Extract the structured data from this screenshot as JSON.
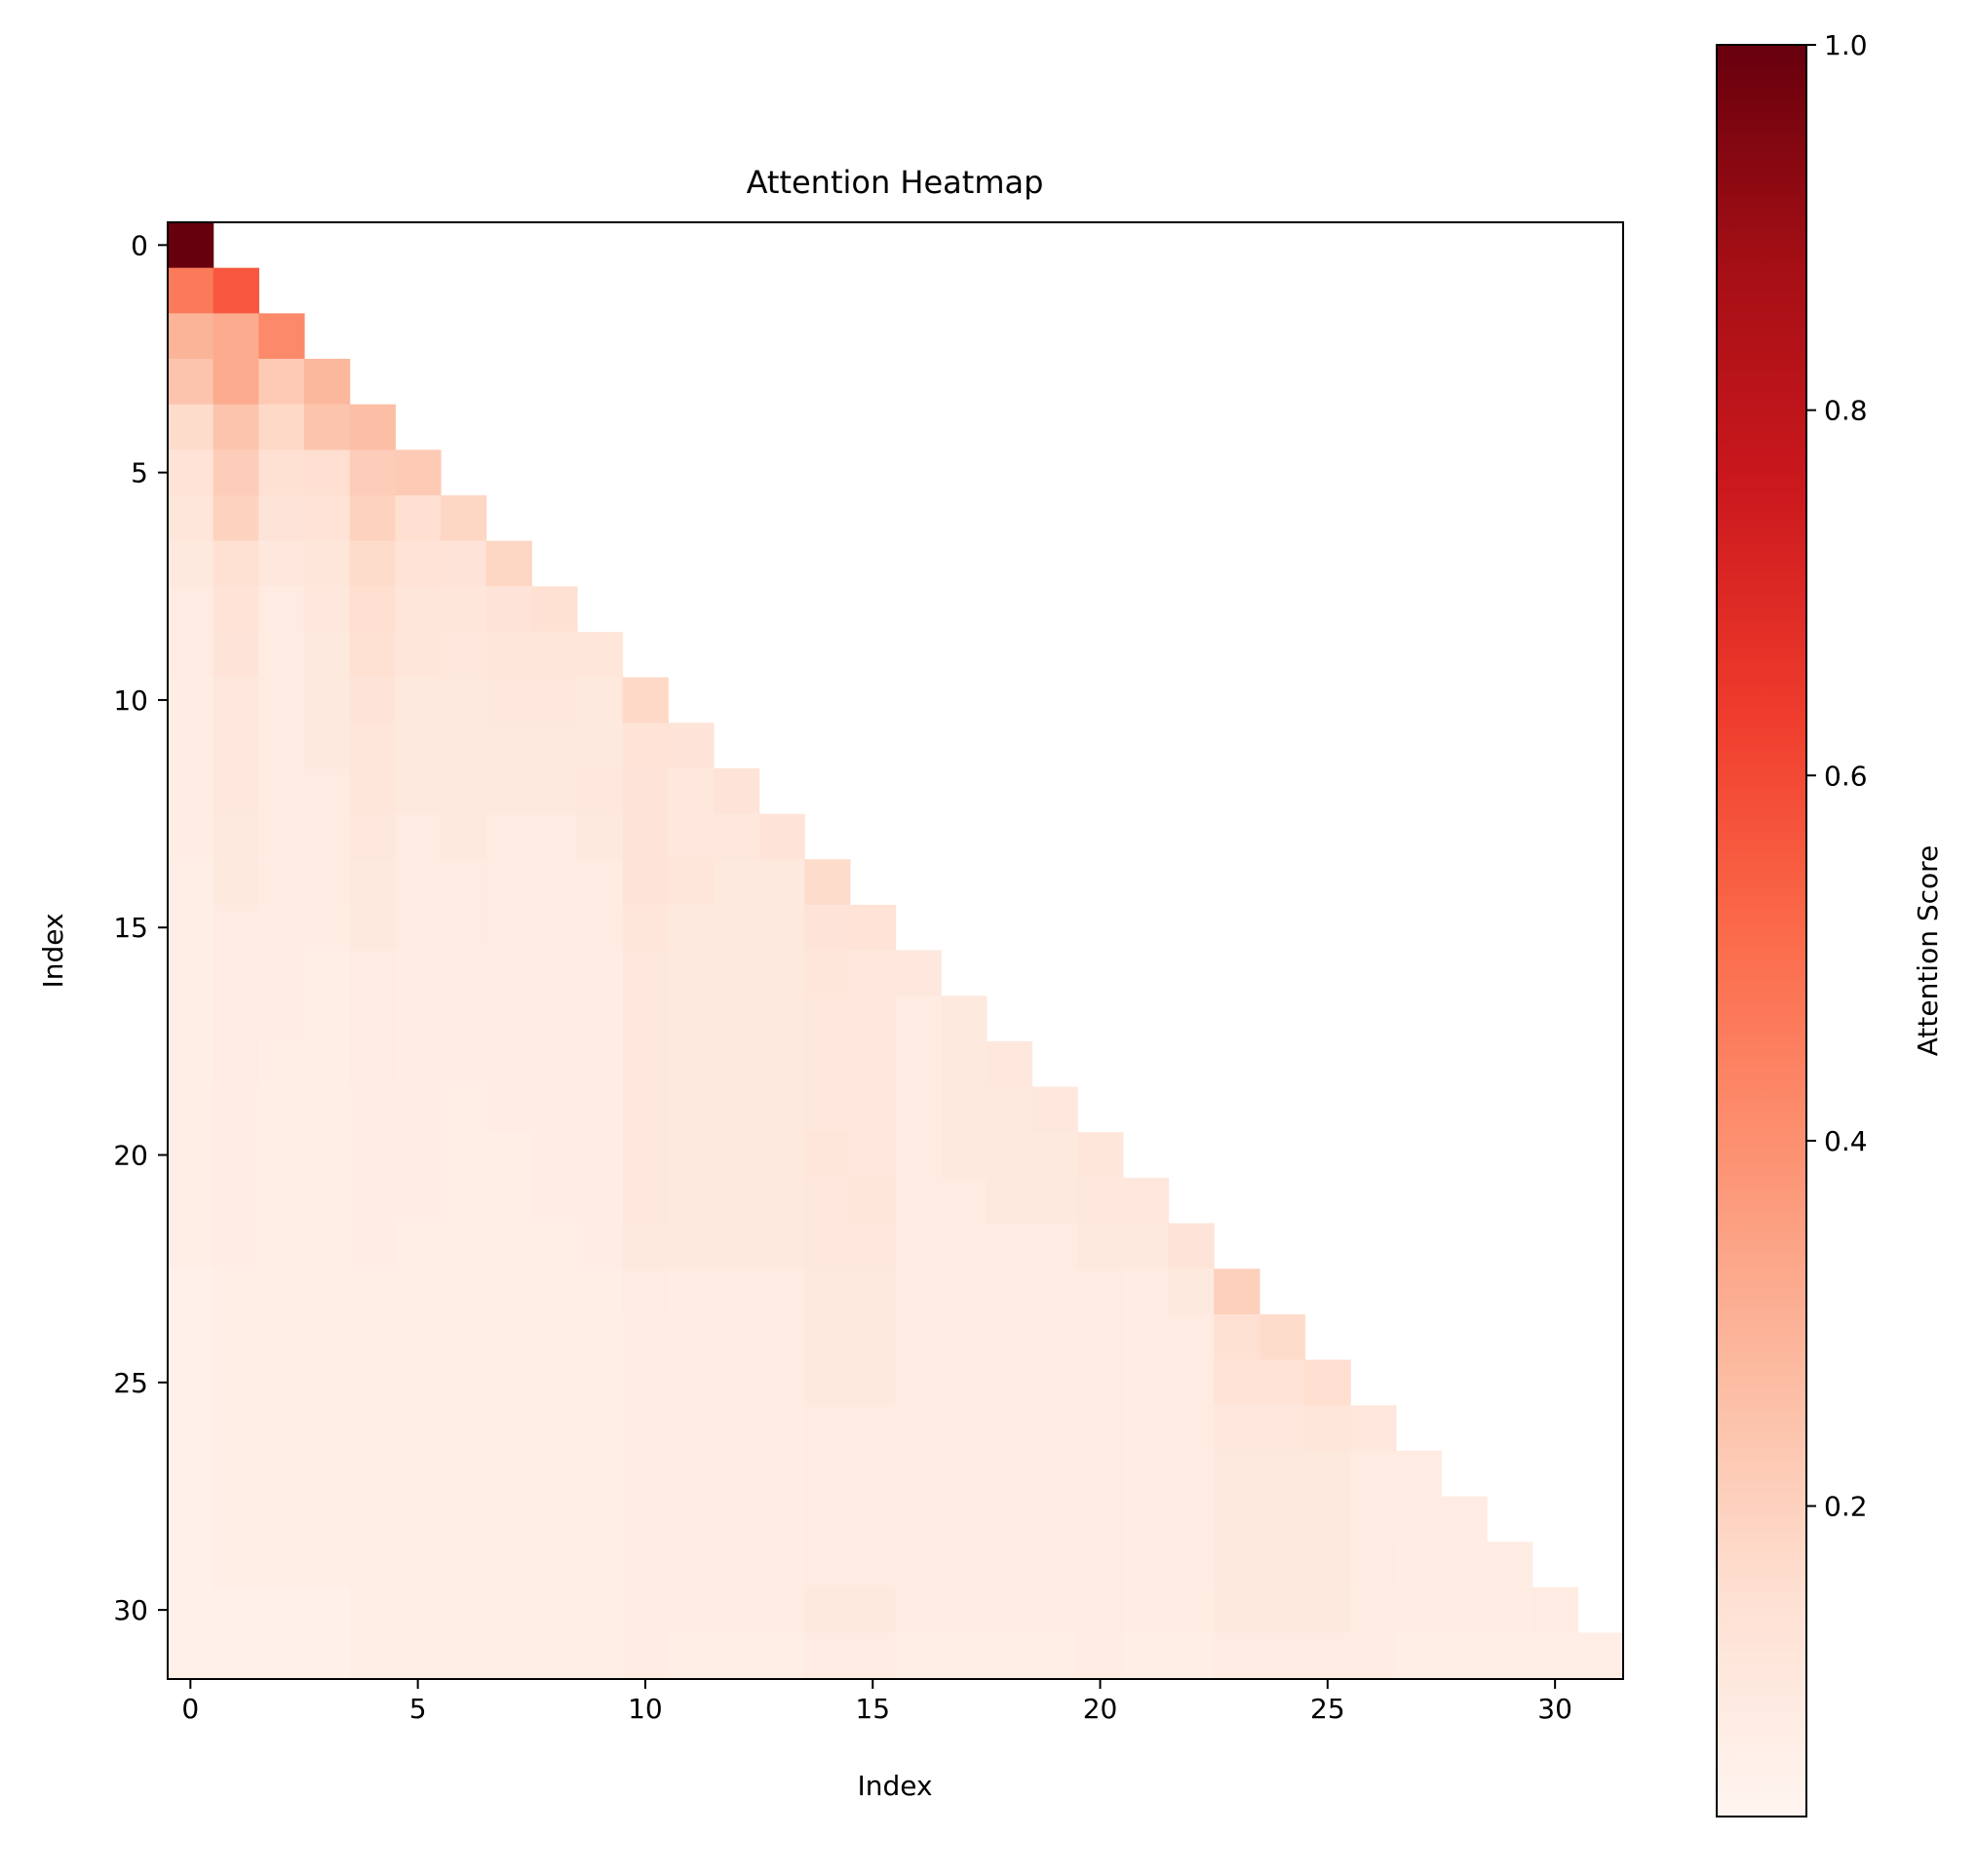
{
  "chart_data": {
    "type": "heatmap",
    "title": "Attention Heatmap",
    "xlabel": "Index",
    "ylabel": "Index",
    "colorbar_label": "Attention Score",
    "colormap": "Reds",
    "colormap_stops": [
      "#fff5f0",
      "#fee0d2",
      "#fcbba1",
      "#fc9272",
      "#fb6a4a",
      "#ef3b2c",
      "#cb181d",
      "#a50f15",
      "#67000d"
    ],
    "vmin": 0.0,
    "vmax": 1.0,
    "colorbar_ticks": [
      {
        "value": 0.2,
        "label": "0.2"
      },
      {
        "value": 0.4,
        "label": "0.4"
      },
      {
        "value": 0.6,
        "label": "0.6"
      },
      {
        "value": 0.8,
        "label": "0.8"
      },
      {
        "value": 1.0,
        "label": "1.0"
      }
    ],
    "x_ticks": [
      {
        "value": 0,
        "label": "0"
      },
      {
        "value": 5,
        "label": "5"
      },
      {
        "value": 10,
        "label": "10"
      },
      {
        "value": 15,
        "label": "15"
      },
      {
        "value": 20,
        "label": "20"
      },
      {
        "value": 25,
        "label": "25"
      },
      {
        "value": 30,
        "label": "30"
      }
    ],
    "y_ticks": [
      {
        "value": 0,
        "label": "0"
      },
      {
        "value": 5,
        "label": "5"
      },
      {
        "value": 10,
        "label": "10"
      },
      {
        "value": 15,
        "label": "15"
      },
      {
        "value": 20,
        "label": "20"
      },
      {
        "value": 25,
        "label": "25"
      },
      {
        "value": 30,
        "label": "30"
      }
    ],
    "size": 32,
    "masked": "upper-triangle",
    "values": [
      [
        1.0
      ],
      [
        0.45,
        0.55
      ],
      [
        0.27,
        0.3,
        0.4
      ],
      [
        0.22,
        0.3,
        0.2,
        0.26
      ],
      [
        0.14,
        0.22,
        0.15,
        0.22,
        0.24
      ],
      [
        0.11,
        0.19,
        0.12,
        0.13,
        0.19,
        0.2
      ],
      [
        0.09,
        0.17,
        0.1,
        0.11,
        0.17,
        0.13,
        0.16
      ],
      [
        0.07,
        0.12,
        0.08,
        0.09,
        0.14,
        0.11,
        0.1,
        0.16
      ],
      [
        0.06,
        0.11,
        0.06,
        0.08,
        0.13,
        0.09,
        0.09,
        0.1,
        0.12
      ],
      [
        0.06,
        0.1,
        0.06,
        0.07,
        0.12,
        0.09,
        0.08,
        0.09,
        0.09,
        0.09
      ],
      [
        0.05,
        0.08,
        0.06,
        0.07,
        0.1,
        0.07,
        0.07,
        0.08,
        0.08,
        0.07,
        0.15
      ],
      [
        0.05,
        0.08,
        0.06,
        0.07,
        0.09,
        0.07,
        0.07,
        0.07,
        0.07,
        0.07,
        0.11,
        0.1
      ],
      [
        0.05,
        0.08,
        0.06,
        0.06,
        0.09,
        0.07,
        0.07,
        0.07,
        0.07,
        0.08,
        0.1,
        0.08,
        0.1
      ],
      [
        0.05,
        0.07,
        0.06,
        0.06,
        0.08,
        0.06,
        0.07,
        0.06,
        0.06,
        0.07,
        0.1,
        0.08,
        0.08,
        0.1
      ],
      [
        0.04,
        0.07,
        0.06,
        0.06,
        0.07,
        0.06,
        0.06,
        0.06,
        0.06,
        0.06,
        0.1,
        0.09,
        0.07,
        0.07,
        0.14
      ],
      [
        0.04,
        0.06,
        0.05,
        0.05,
        0.07,
        0.06,
        0.06,
        0.06,
        0.06,
        0.06,
        0.09,
        0.07,
        0.07,
        0.07,
        0.1,
        0.11
      ],
      [
        0.04,
        0.06,
        0.05,
        0.04,
        0.06,
        0.05,
        0.05,
        0.05,
        0.05,
        0.05,
        0.08,
        0.07,
        0.07,
        0.07,
        0.09,
        0.08,
        0.08
      ],
      [
        0.04,
        0.06,
        0.05,
        0.04,
        0.06,
        0.05,
        0.05,
        0.05,
        0.05,
        0.05,
        0.08,
        0.07,
        0.07,
        0.07,
        0.08,
        0.08,
        0.06,
        0.07
      ],
      [
        0.04,
        0.06,
        0.04,
        0.04,
        0.06,
        0.05,
        0.05,
        0.05,
        0.05,
        0.05,
        0.08,
        0.07,
        0.07,
        0.07,
        0.08,
        0.08,
        0.06,
        0.07,
        0.08
      ],
      [
        0.04,
        0.05,
        0.04,
        0.04,
        0.05,
        0.05,
        0.04,
        0.05,
        0.05,
        0.05,
        0.08,
        0.07,
        0.07,
        0.07,
        0.08,
        0.08,
        0.06,
        0.07,
        0.07,
        0.08
      ],
      [
        0.04,
        0.05,
        0.04,
        0.04,
        0.05,
        0.05,
        0.04,
        0.04,
        0.05,
        0.05,
        0.08,
        0.07,
        0.07,
        0.07,
        0.09,
        0.08,
        0.06,
        0.07,
        0.07,
        0.07,
        0.09
      ],
      [
        0.04,
        0.05,
        0.04,
        0.04,
        0.05,
        0.05,
        0.04,
        0.04,
        0.05,
        0.05,
        0.08,
        0.07,
        0.07,
        0.07,
        0.08,
        0.09,
        0.06,
        0.06,
        0.07,
        0.07,
        0.08,
        0.08
      ],
      [
        0.04,
        0.05,
        0.04,
        0.04,
        0.05,
        0.04,
        0.04,
        0.04,
        0.04,
        0.05,
        0.07,
        0.07,
        0.07,
        0.07,
        0.08,
        0.08,
        0.06,
        0.06,
        0.06,
        0.06,
        0.07,
        0.07,
        0.1
      ],
      [
        0.03,
        0.04,
        0.04,
        0.04,
        0.04,
        0.04,
        0.04,
        0.04,
        0.04,
        0.04,
        0.06,
        0.05,
        0.05,
        0.05,
        0.07,
        0.07,
        0.05,
        0.05,
        0.05,
        0.05,
        0.06,
        0.05,
        0.07,
        0.18
      ],
      [
        0.03,
        0.04,
        0.04,
        0.04,
        0.04,
        0.04,
        0.04,
        0.04,
        0.04,
        0.04,
        0.05,
        0.05,
        0.05,
        0.05,
        0.07,
        0.07,
        0.05,
        0.05,
        0.05,
        0.05,
        0.06,
        0.05,
        0.06,
        0.12,
        0.14
      ],
      [
        0.03,
        0.04,
        0.04,
        0.04,
        0.04,
        0.04,
        0.04,
        0.04,
        0.04,
        0.04,
        0.05,
        0.05,
        0.05,
        0.05,
        0.07,
        0.07,
        0.05,
        0.05,
        0.05,
        0.05,
        0.06,
        0.05,
        0.06,
        0.11,
        0.11,
        0.13
      ],
      [
        0.03,
        0.04,
        0.04,
        0.04,
        0.04,
        0.04,
        0.04,
        0.04,
        0.04,
        0.04,
        0.05,
        0.05,
        0.05,
        0.05,
        0.06,
        0.06,
        0.05,
        0.05,
        0.05,
        0.05,
        0.06,
        0.05,
        0.06,
        0.08,
        0.08,
        0.09,
        0.08
      ],
      [
        0.03,
        0.04,
        0.04,
        0.04,
        0.04,
        0.04,
        0.04,
        0.04,
        0.04,
        0.04,
        0.05,
        0.05,
        0.05,
        0.05,
        0.06,
        0.06,
        0.05,
        0.05,
        0.05,
        0.05,
        0.06,
        0.05,
        0.06,
        0.07,
        0.07,
        0.07,
        0.06,
        0.06
      ],
      [
        0.03,
        0.04,
        0.04,
        0.04,
        0.04,
        0.04,
        0.04,
        0.04,
        0.04,
        0.04,
        0.05,
        0.05,
        0.05,
        0.05,
        0.06,
        0.06,
        0.05,
        0.05,
        0.05,
        0.05,
        0.06,
        0.05,
        0.06,
        0.07,
        0.07,
        0.07,
        0.06,
        0.06,
        0.06
      ],
      [
        0.03,
        0.04,
        0.04,
        0.04,
        0.04,
        0.04,
        0.04,
        0.04,
        0.04,
        0.04,
        0.05,
        0.05,
        0.05,
        0.05,
        0.06,
        0.06,
        0.05,
        0.05,
        0.05,
        0.05,
        0.06,
        0.05,
        0.06,
        0.07,
        0.07,
        0.07,
        0.06,
        0.05,
        0.05,
        0.05
      ],
      [
        0.03,
        0.03,
        0.03,
        0.03,
        0.04,
        0.04,
        0.04,
        0.04,
        0.04,
        0.04,
        0.05,
        0.05,
        0.05,
        0.05,
        0.07,
        0.07,
        0.05,
        0.05,
        0.05,
        0.05,
        0.06,
        0.05,
        0.05,
        0.07,
        0.07,
        0.07,
        0.05,
        0.05,
        0.05,
        0.05,
        0.06
      ],
      [
        0.03,
        0.03,
        0.03,
        0.03,
        0.04,
        0.04,
        0.04,
        0.04,
        0.04,
        0.04,
        0.05,
        0.04,
        0.04,
        0.04,
        0.06,
        0.06,
        0.04,
        0.04,
        0.04,
        0.04,
        0.05,
        0.04,
        0.04,
        0.06,
        0.06,
        0.06,
        0.05,
        0.04,
        0.04,
        0.04,
        0.04,
        0.04
      ]
    ]
  }
}
